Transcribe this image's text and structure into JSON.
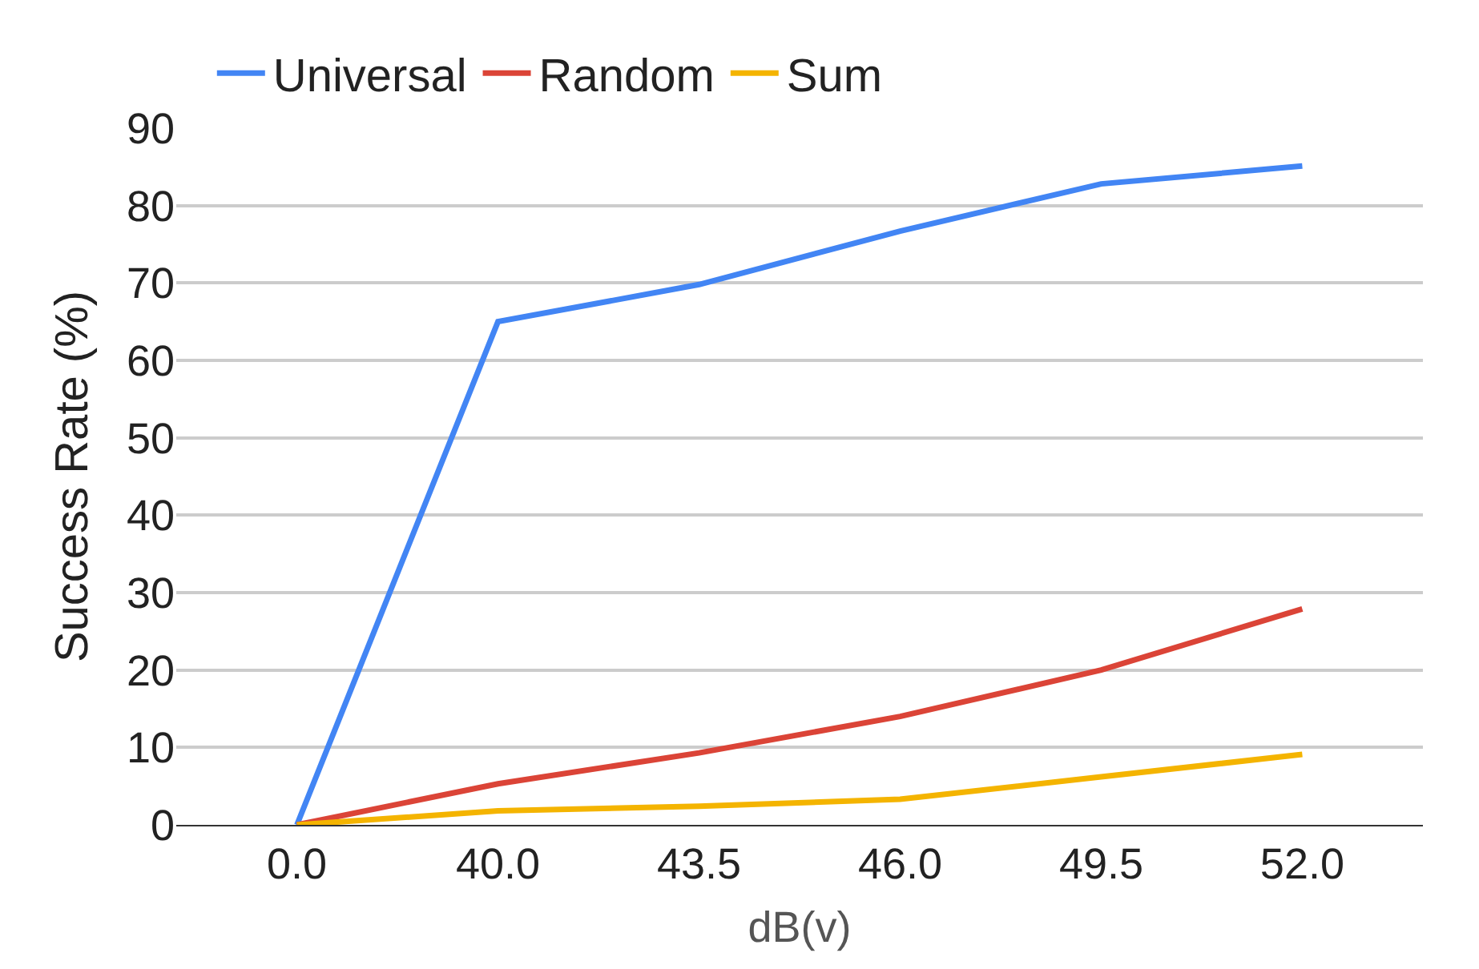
{
  "chart_data": {
    "type": "line",
    "xlabel": "dB(v)",
    "ylabel": "Success Rate (%)",
    "categories": [
      "0.0",
      "40.0",
      "43.5",
      "46.0",
      "49.5",
      "52.0"
    ],
    "series": [
      {
        "name": "Universal",
        "color": "#4285f4",
        "values": [
          0,
          65.0,
          69.8,
          76.7,
          82.8,
          85.1
        ]
      },
      {
        "name": "Random",
        "color": "#db4437",
        "values": [
          0,
          5.3,
          9.3,
          14.0,
          20.0,
          27.9
        ]
      },
      {
        "name": "Sum",
        "color": "#f4b400",
        "values": [
          0,
          1.8,
          2.4,
          3.3,
          6.2,
          9.1
        ]
      }
    ],
    "ylim": [
      0,
      90
    ],
    "yticks": [
      0,
      10,
      20,
      30,
      40,
      50,
      60,
      70,
      80,
      90
    ],
    "grid": "y",
    "legend": "top",
    "marker": "none",
    "line_style": "solid"
  }
}
